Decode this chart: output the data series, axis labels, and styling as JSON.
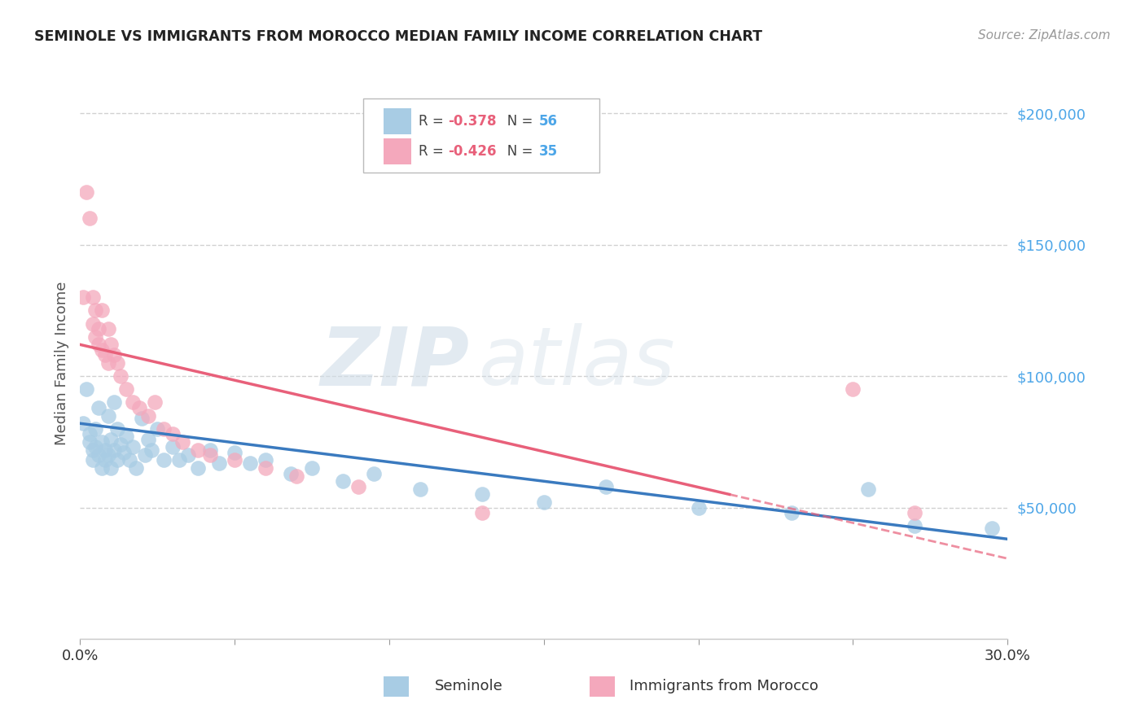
{
  "title": "SEMINOLE VS IMMIGRANTS FROM MOROCCO MEDIAN FAMILY INCOME CORRELATION CHART",
  "source": "Source: ZipAtlas.com",
  "ylabel": "Median Family Income",
  "xlim": [
    0.0,
    0.3
  ],
  "ylim": [
    0,
    210000
  ],
  "yticks": [
    50000,
    100000,
    150000,
    200000
  ],
  "ytick_labels": [
    "$50,000",
    "$100,000",
    "$150,000",
    "$200,000"
  ],
  "legend_label1": "Seminole",
  "legend_label2": "Immigrants from Morocco",
  "blue_color": "#a8cce4",
  "pink_color": "#f4a8bc",
  "blue_line_color": "#3a7abf",
  "pink_line_color": "#e8607a",
  "watermark_zip": "ZIP",
  "watermark_atlas": "atlas",
  "grid_color": "#cccccc",
  "background_color": "#ffffff",
  "seminole_x": [
    0.001,
    0.002,
    0.003,
    0.003,
    0.004,
    0.004,
    0.005,
    0.005,
    0.006,
    0.006,
    0.007,
    0.007,
    0.008,
    0.008,
    0.009,
    0.009,
    0.01,
    0.01,
    0.011,
    0.011,
    0.012,
    0.012,
    0.013,
    0.014,
    0.015,
    0.016,
    0.017,
    0.018,
    0.02,
    0.021,
    0.022,
    0.023,
    0.025,
    0.027,
    0.03,
    0.032,
    0.035,
    0.038,
    0.042,
    0.045,
    0.05,
    0.055,
    0.06,
    0.068,
    0.075,
    0.085,
    0.095,
    0.11,
    0.13,
    0.15,
    0.17,
    0.2,
    0.23,
    0.255,
    0.27,
    0.295
  ],
  "seminole_y": [
    82000,
    95000,
    78000,
    75000,
    72000,
    68000,
    80000,
    73000,
    88000,
    70000,
    75000,
    65000,
    72000,
    68000,
    85000,
    70000,
    76000,
    65000,
    90000,
    72000,
    80000,
    68000,
    74000,
    71000,
    77000,
    68000,
    73000,
    65000,
    84000,
    70000,
    76000,
    72000,
    80000,
    68000,
    73000,
    68000,
    70000,
    65000,
    72000,
    67000,
    71000,
    67000,
    68000,
    63000,
    65000,
    60000,
    63000,
    57000,
    55000,
    52000,
    58000,
    50000,
    48000,
    57000,
    43000,
    42000
  ],
  "morocco_x": [
    0.001,
    0.002,
    0.003,
    0.004,
    0.004,
    0.005,
    0.005,
    0.006,
    0.006,
    0.007,
    0.007,
    0.008,
    0.009,
    0.009,
    0.01,
    0.011,
    0.012,
    0.013,
    0.015,
    0.017,
    0.019,
    0.022,
    0.024,
    0.027,
    0.03,
    0.033,
    0.038,
    0.042,
    0.05,
    0.06,
    0.07,
    0.09,
    0.13,
    0.25,
    0.27
  ],
  "morocco_y": [
    130000,
    170000,
    160000,
    130000,
    120000,
    125000,
    115000,
    118000,
    112000,
    125000,
    110000,
    108000,
    118000,
    105000,
    112000,
    108000,
    105000,
    100000,
    95000,
    90000,
    88000,
    85000,
    90000,
    80000,
    78000,
    75000,
    72000,
    70000,
    68000,
    65000,
    62000,
    58000,
    48000,
    95000,
    48000
  ]
}
